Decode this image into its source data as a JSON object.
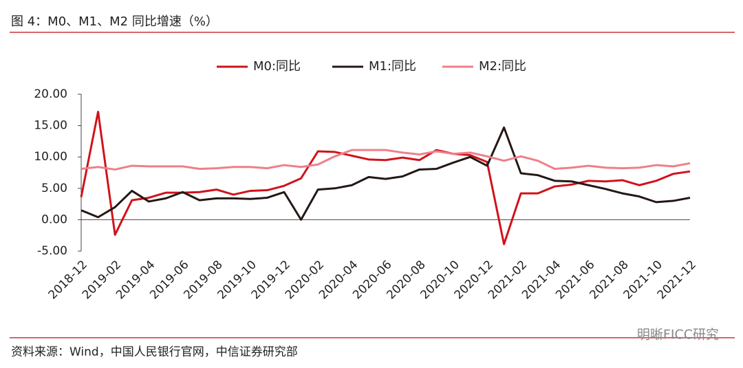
{
  "chart_data": {
    "type": "line",
    "title": "图 4：M0、M1、M2 同比增速（%）",
    "source": "资料来源：Wind，中国人民银行官网，中信证券研究部",
    "watermark": "明晰FICC研究",
    "categories": [
      "2018-12",
      null,
      "2019-02",
      null,
      "2019-04",
      null,
      "2019-06",
      null,
      "2019-08",
      null,
      "2019-10",
      null,
      "2019-12",
      null,
      "2020-02",
      null,
      "2020-04",
      null,
      "2020-06",
      null,
      "2020-08",
      null,
      "2020-10",
      null,
      "2020-12",
      null,
      "2021-02",
      null,
      "2021-04",
      null,
      "2021-06",
      null,
      "2021-08",
      null,
      "2021-10",
      null,
      "2021-12"
    ],
    "series": [
      {
        "name": "M0:同比",
        "color": "#d0121b",
        "values": [
          3.6,
          17.2,
          -2.4,
          3.1,
          3.5,
          4.3,
          4.3,
          4.4,
          4.8,
          4.0,
          4.6,
          4.7,
          5.4,
          6.6,
          10.9,
          10.8,
          10.2,
          9.6,
          9.5,
          9.9,
          9.5,
          11.1,
          10.5,
          10.3,
          9.2,
          -3.9,
          4.2,
          4.2,
          5.3,
          5.6,
          6.2,
          6.1,
          6.3,
          5.5,
          6.2,
          7.3,
          7.7
        ]
      },
      {
        "name": "M1:同比",
        "color": "#231815",
        "values": [
          1.5,
          0.4,
          2.0,
          4.6,
          2.9,
          3.4,
          4.4,
          3.1,
          3.4,
          3.4,
          3.3,
          3.5,
          4.4,
          0.0,
          4.8,
          5.0,
          5.5,
          6.8,
          6.5,
          6.9,
          8.0,
          8.1,
          9.1,
          10.0,
          8.6,
          14.7,
          7.4,
          7.1,
          6.2,
          6.1,
          5.5,
          4.9,
          4.2,
          3.7,
          2.8,
          3.0,
          3.5
        ]
      },
      {
        "name": "M2:同比",
        "color": "#ee7f8a",
        "values": [
          8.1,
          8.4,
          8.0,
          8.6,
          8.5,
          8.5,
          8.5,
          8.1,
          8.2,
          8.4,
          8.4,
          8.2,
          8.7,
          8.4,
          8.8,
          10.1,
          11.1,
          11.1,
          11.1,
          10.7,
          10.4,
          10.9,
          10.5,
          10.7,
          10.1,
          9.4,
          10.1,
          9.4,
          8.1,
          8.3,
          8.6,
          8.3,
          8.2,
          8.3,
          8.7,
          8.5,
          9.0
        ]
      }
    ],
    "ylim": [
      -5,
      20
    ],
    "yticks": [
      {
        "value": -5,
        "label": "-5.00"
      },
      {
        "value": 0,
        "label": "0.00"
      },
      {
        "value": 5,
        "label": "5.00"
      },
      {
        "value": 10,
        "label": "10.00"
      },
      {
        "value": 15,
        "label": "15.00"
      },
      {
        "value": 20,
        "label": "20.00"
      }
    ],
    "grid": false,
    "legend": "top"
  }
}
